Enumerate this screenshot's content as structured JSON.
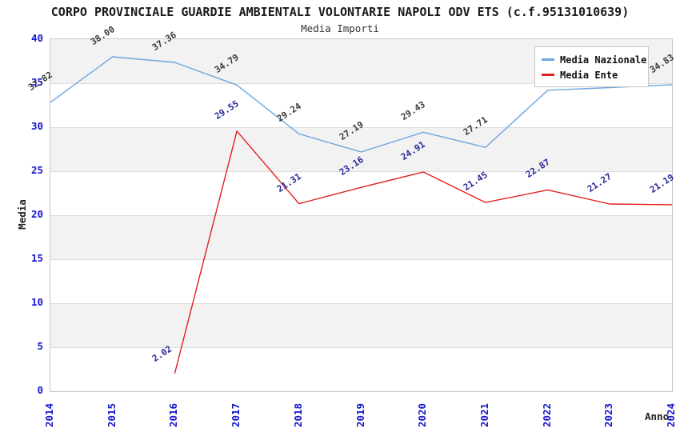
{
  "chart_data": {
    "type": "line",
    "title": "CORPO PROVINCIALE GUARDIE AMBIENTALI VOLONTARIE NAPOLI ODV ETS (c.f.95131010639)",
    "subtitle": "Media Importi",
    "xlabel": "Anno",
    "ylabel": "Media",
    "x": [
      "2014",
      "2015",
      "2016",
      "2017",
      "2018",
      "2019",
      "2020",
      "2021",
      "2022",
      "2023",
      "2024"
    ],
    "ylim": [
      0,
      40
    ],
    "y_ticks": [
      0,
      5,
      10,
      15,
      20,
      25,
      30,
      35,
      40
    ],
    "grid": "horizontal-bands",
    "legend_position": "top-right",
    "series": [
      {
        "name": "Media Nazionale",
        "color": "#6ea6df",
        "label_color": "#3a3a3a",
        "values": [
          32.82,
          38.0,
          37.36,
          34.79,
          29.24,
          27.19,
          29.43,
          27.71,
          34.2,
          34.5,
          34.83
        ],
        "labels": [
          "32.82",
          "38.00",
          "37.36",
          "34.79",
          "29.24",
          "27.19",
          "29.43",
          "27.71",
          null,
          null,
          "34.83"
        ]
      },
      {
        "name": "Media Ente",
        "color": "#e02020",
        "label_color": "#28289b",
        "values": [
          null,
          null,
          2.02,
          29.55,
          21.31,
          23.16,
          24.91,
          21.45,
          22.87,
          21.27,
          21.19
        ],
        "labels": [
          null,
          null,
          "2.02",
          "29.55",
          "21.31",
          "23.16",
          "24.91",
          "21.45",
          "22.87",
          "21.27",
          "21.19"
        ]
      }
    ]
  },
  "colors": {
    "axis_tick": "#1414ce",
    "band": "#f2f2f2",
    "gridline": "#dbdbdb",
    "plot_border": "#c8c8c8",
    "title": "#1a1a1a"
  }
}
